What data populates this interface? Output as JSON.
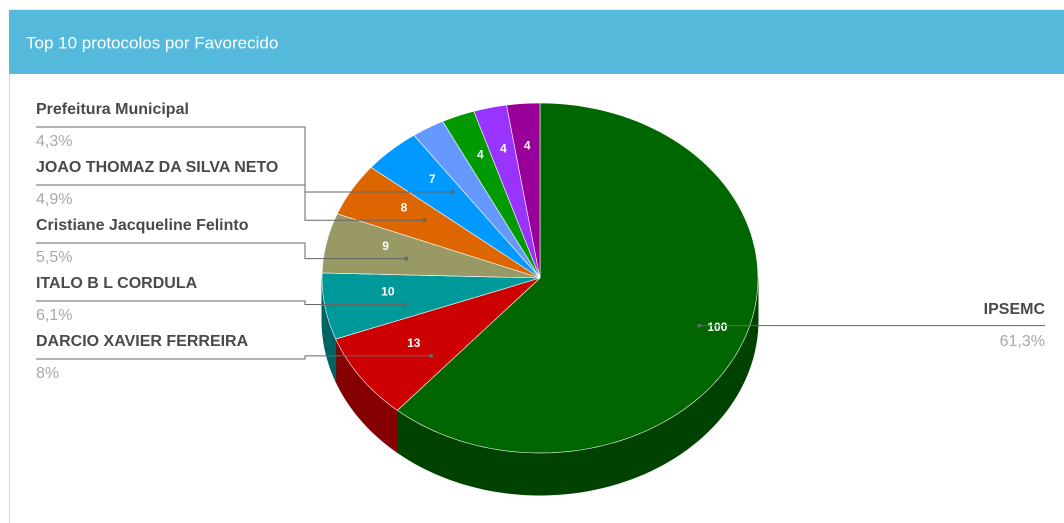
{
  "chart_data": {
    "type": "pie",
    "title": "Top 10 protocolos por Favorecido",
    "categories": [
      "IPSEMC",
      "DARCIO XAVIER FERREIRA",
      "ITALO B L CORDULA",
      "Cristiane Jacqueline Felinto",
      "JOAO THOMAZ DA SILVA NETO",
      "Prefeitura Municipal",
      null,
      null,
      null,
      null
    ],
    "values": [
      100,
      13,
      10,
      9,
      8,
      7,
      4,
      4,
      4,
      4
    ],
    "value_labels": [
      "100",
      "13",
      "10",
      "9",
      "8",
      "7",
      null,
      "4",
      "4",
      "4"
    ],
    "percent_labels": [
      "61,3%",
      "8%",
      "6,1%",
      "5,5%",
      "4,9%",
      "4,3%",
      null,
      null,
      null,
      null
    ],
    "colors": [
      "#006600",
      "#cc0000",
      "#009999",
      "#999966",
      "#dd6600",
      "#0099ff",
      "#6699ff",
      "#009900",
      "#9933ff",
      "#990099"
    ],
    "three_d": true
  }
}
